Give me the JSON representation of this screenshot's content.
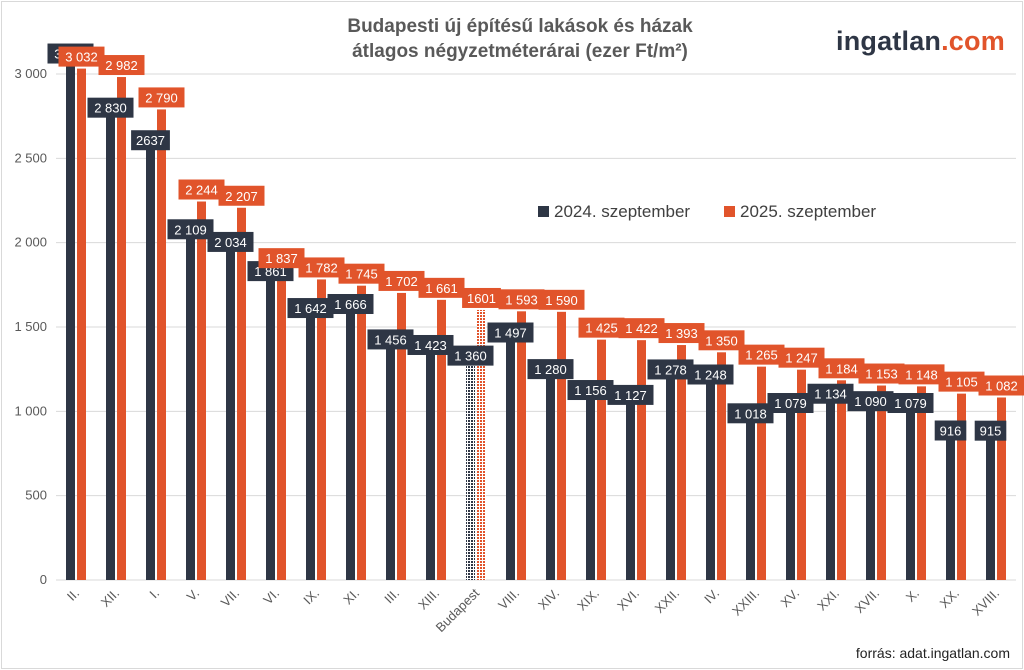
{
  "header": {
    "title_line1": "Budapesti új építésű lakások és házak",
    "title_line2": "átlagos négyzetméterárai (ezer Ft/m²)",
    "logo_part1": "ingatlan",
    "logo_part2": ".com"
  },
  "footer": {
    "source": "forrás: adat.ingatlan.com"
  },
  "colors": {
    "series2024": "#2e3645",
    "series2025": "#e1542b",
    "grid": "#d9d9d9"
  },
  "chart_data": {
    "type": "bar",
    "title": "Budapesti új építésű lakások és házak átlagos négyzetméterárai (ezer Ft/m²)",
    "categories": [
      "II.",
      "XII.",
      "I.",
      "V.",
      "VII.",
      "VI.",
      "IX.",
      "XI.",
      "III.",
      "XIII.",
      "Budapest",
      "VIII.",
      "XIV.",
      "XIX.",
      "XVI.",
      "XXII.",
      "IV.",
      "XXIII.",
      "XV.",
      "XXI.",
      "XVII.",
      "X.",
      "XX.",
      "XVIII."
    ],
    "series": [
      {
        "name": "2024. szeptember",
        "values": [
          3151,
          2830,
          2637,
          2109,
          2034,
          1861,
          1642,
          1666,
          1456,
          1423,
          1360,
          1497,
          1280,
          1156,
          1127,
          1278,
          1248,
          1018,
          1079,
          1134,
          1090,
          1079,
          916,
          915
        ],
        "labels": [
          "3 151",
          "2 830",
          "2637",
          "2 109",
          "2 034",
          "1 861",
          "1 642",
          "1 666",
          "1 456",
          "1 423",
          "1 360",
          "1 497",
          "1 280",
          "1 156",
          "1 127",
          "1 278",
          "1 248",
          "1 018",
          "1 079",
          "1 134",
          "1 090",
          "1 079",
          "916",
          "915"
        ]
      },
      {
        "name": "2025. szeptember",
        "values": [
          3032,
          2982,
          2790,
          2244,
          2207,
          1837,
          1782,
          1745,
          1702,
          1661,
          1601,
          1593,
          1590,
          1425,
          1422,
          1393,
          1350,
          1265,
          1247,
          1184,
          1153,
          1148,
          1105,
          1082
        ],
        "labels": [
          "3 032",
          "2 982",
          "2 790",
          "2 244",
          "2 207",
          "1 837",
          "1 782",
          "1 745",
          "1 702",
          "1 661",
          "1601",
          "1 593",
          "1 590",
          "1 425",
          "1 422",
          "1 393",
          "1 350",
          "1 265",
          "1 247",
          "1 184",
          "1 153",
          "1 148",
          "1 105",
          "1 082"
        ]
      }
    ],
    "highlight_category": "Budapest",
    "yticks": [
      0,
      500,
      1000,
      1500,
      2000,
      2500,
      3000
    ],
    "ytick_labels": [
      "0",
      "500",
      "1 000",
      "1 500",
      "2 000",
      "2 500",
      "3 000"
    ],
    "ylim": [
      0,
      3200
    ],
    "grid": true,
    "legend_position": "right"
  }
}
